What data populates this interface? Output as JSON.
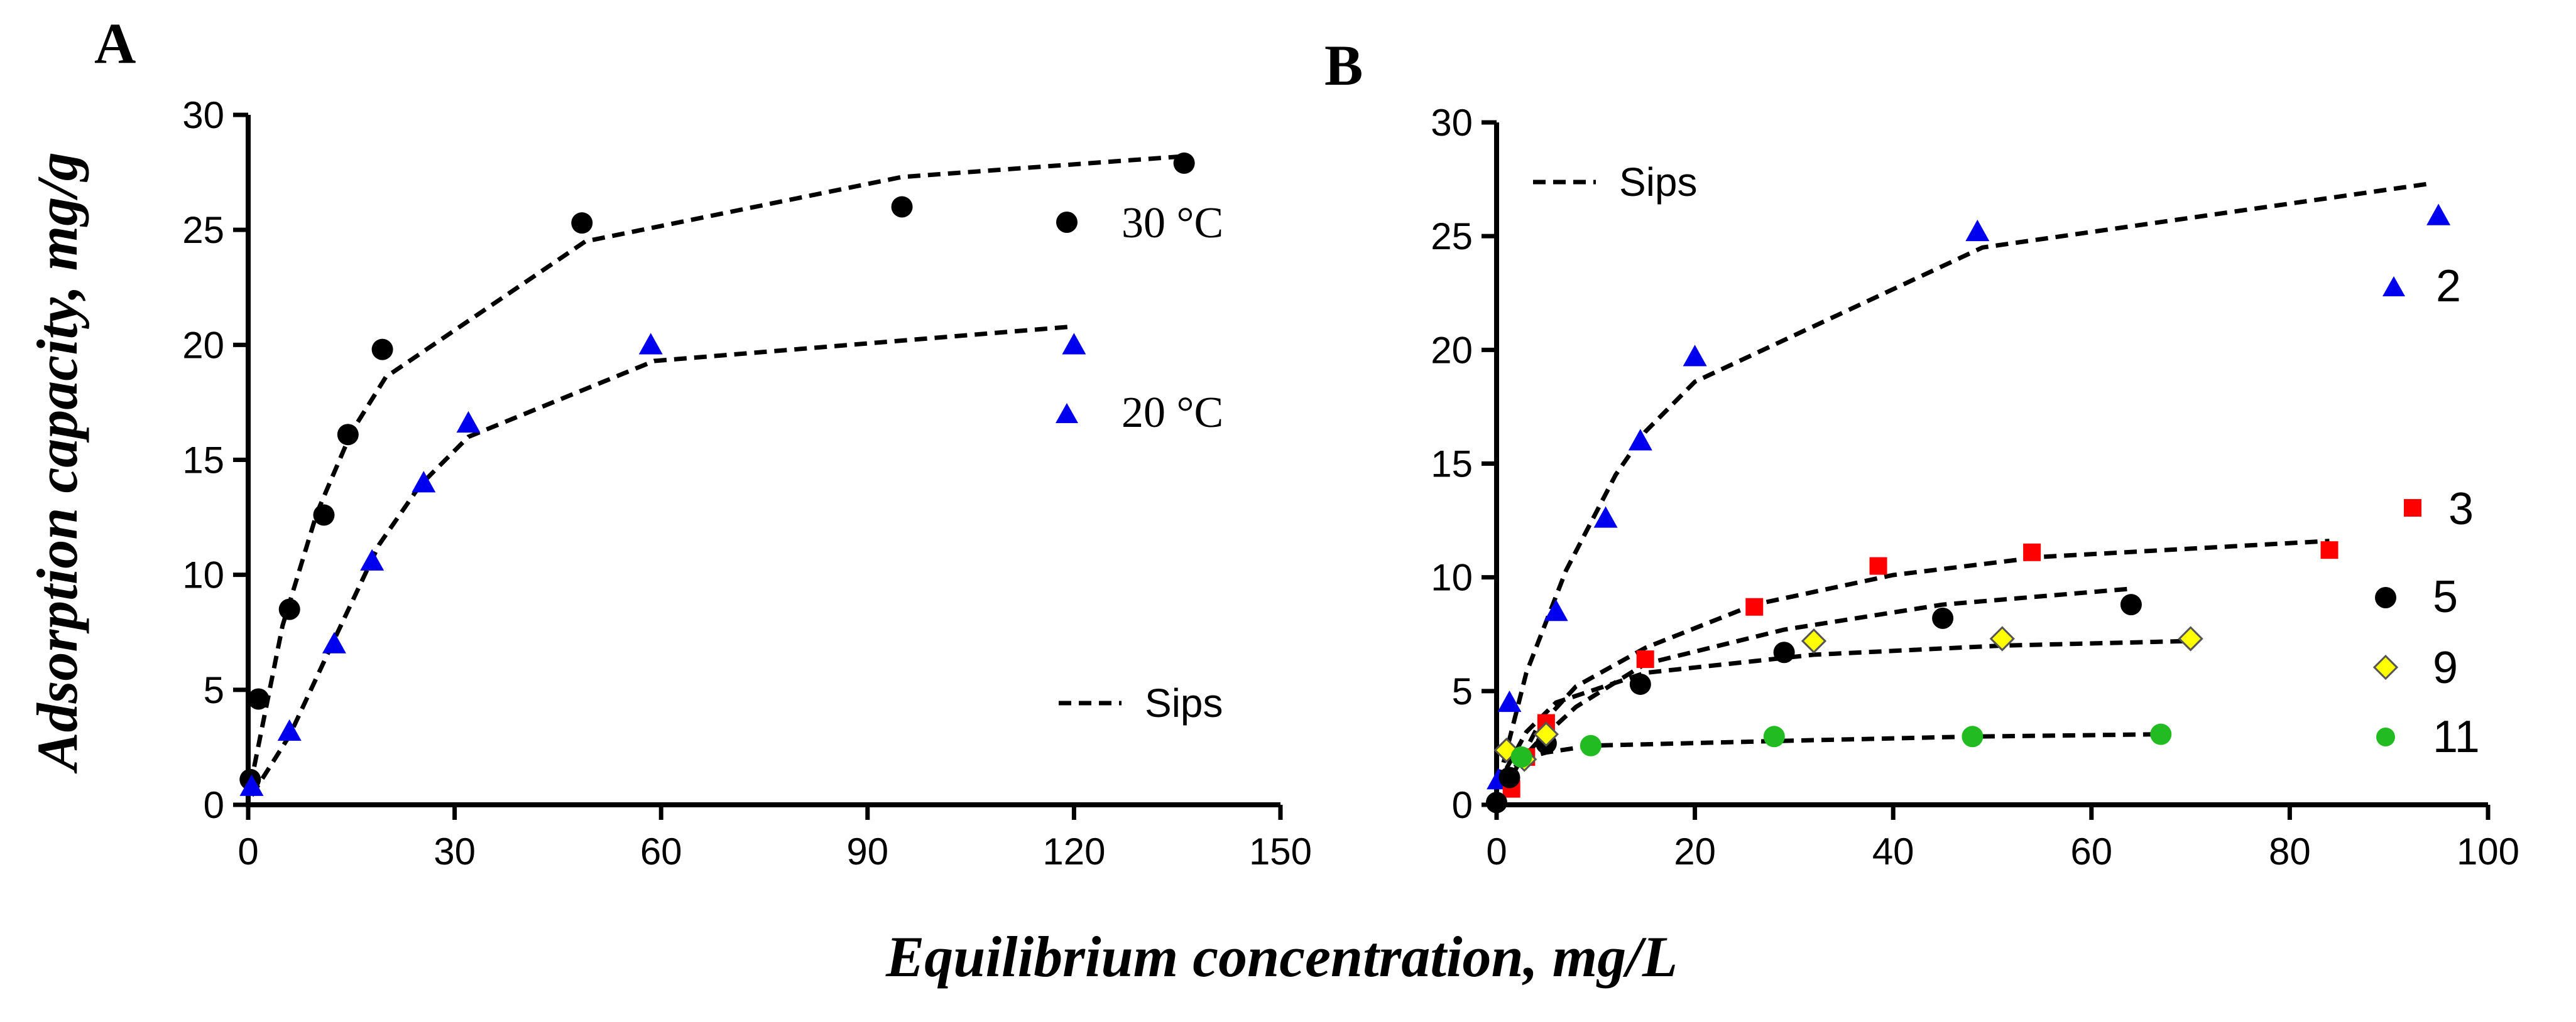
{
  "figure": {
    "ylabel": "Adsorption capacity, mg/g",
    "xlabel": "Equilibrium concentration, mg/L"
  },
  "chart_data": [
    {
      "panel": "A",
      "type": "scatter",
      "title": "",
      "xlim": [
        0,
        150
      ],
      "ylim": [
        0,
        30
      ],
      "xticks": [
        0,
        30,
        60,
        90,
        120,
        150
      ],
      "yticks": [
        0,
        5,
        10,
        15,
        20,
        25,
        30
      ],
      "legend": {
        "fit_label": "Sips"
      },
      "series": [
        {
          "name": "30 °C",
          "marker": "circle",
          "color": "#000000",
          "x": [
            0.3,
            1.5,
            6,
            11,
            14.5,
            19.5,
            48.5,
            95,
            136
          ],
          "y": [
            1.1,
            4.6,
            8.5,
            12.6,
            16.1,
            19.8,
            25.3,
            26.0,
            27.9
          ],
          "fit": {
            "x": [
              0.3,
              5,
              10,
              15,
              20,
              49,
              95,
              136
            ],
            "y": [
              0.8,
              7.8,
              12.7,
              16.2,
              18.6,
              24.5,
              27.3,
              28.2
            ]
          }
        },
        {
          "name": "20 °C",
          "marker": "triangle",
          "color": "#0000ee",
          "x": [
            0.5,
            6,
            12.5,
            18,
            25.5,
            32,
            58.5,
            120
          ],
          "y": [
            0.8,
            3.2,
            7.0,
            10.6,
            14.0,
            16.6,
            20.0,
            20.0
          ],
          "fit": {
            "x": [
              0.5,
              6,
              13,
              19,
              25,
              32,
              59,
              120
            ],
            "y": [
              0.4,
              3.0,
              7.5,
              11.3,
              13.9,
              16.0,
              19.3,
              20.8
            ]
          }
        }
      ]
    },
    {
      "panel": "B",
      "type": "scatter",
      "title": "",
      "xlim": [
        0,
        100
      ],
      "ylim": [
        0,
        30
      ],
      "xticks": [
        0,
        20,
        40,
        60,
        80,
        100
      ],
      "yticks": [
        0,
        5,
        10,
        15,
        20,
        25,
        30
      ],
      "legend": {
        "fit_label": "Sips"
      },
      "series": [
        {
          "name": "2",
          "marker": "triangle",
          "color": "#0000ee",
          "x": [
            0.2,
            1.3,
            6,
            11,
            14.5,
            20,
            48.5,
            95
          ],
          "y": [
            1.1,
            4.5,
            8.5,
            12.6,
            16.0,
            19.7,
            25.2,
            25.9
          ],
          "fit": {
            "x": [
              0.2,
              3,
              7,
              12,
              15,
              20,
              49,
              94
            ],
            "y": [
              1.0,
              5.8,
              10.3,
              14.5,
              16.4,
              18.6,
              24.5,
              27.3
            ]
          }
        },
        {
          "name": "3",
          "marker": "square",
          "color": "#ff0000",
          "x": [
            1.5,
            3,
            5,
            15,
            26,
            38.5,
            54,
            84
          ],
          "y": [
            0.7,
            2.1,
            3.6,
            6.4,
            8.7,
            10.5,
            11.1,
            11.2
          ],
          "fit": {
            "x": [
              1.5,
              4,
              8,
              15,
              26,
              40,
              55,
              84
            ],
            "y": [
              1.2,
              3.3,
              5.2,
              6.9,
              8.8,
              10.1,
              10.9,
              11.6
            ]
          }
        },
        {
          "name": "5",
          "marker": "circle",
          "color": "#000000",
          "x": [
            0,
            1.3,
            5,
            14.5,
            29,
            45,
            64
          ],
          "y": [
            0.1,
            1.2,
            2.7,
            5.3,
            6.7,
            8.2,
            8.8
          ],
          "fit": {
            "x": [
              0.5,
              4,
              8,
              15,
              29,
              45,
              64
            ],
            "y": [
              1.0,
              2.7,
              4.3,
              6.2,
              7.7,
              8.8,
              9.5
            ]
          }
        },
        {
          "name": "9",
          "marker": "diamond",
          "color": "#ffff00",
          "x": [
            1,
            2.8,
            5,
            32,
            51,
            70
          ],
          "y": [
            2.4,
            2.0,
            3.1,
            7.2,
            7.3,
            7.3
          ],
          "fit": {
            "x": [
              1,
              3,
              6,
              15,
              32,
              51,
              70
            ],
            "y": [
              1.6,
              3.2,
              4.5,
              5.8,
              6.6,
              7.0,
              7.2
            ]
          }
        },
        {
          "name": "11",
          "marker": "circle",
          "color": "#22bb22",
          "x": [
            2.5,
            9.5,
            28,
            48,
            67
          ],
          "y": [
            2.1,
            2.6,
            3.0,
            3.0,
            3.1
          ],
          "fit": {
            "x": [
              2.5,
              5,
              9.5,
              28,
              48,
              67
            ],
            "y": [
              2.0,
              2.3,
              2.6,
              2.8,
              3.0,
              3.1
            ]
          }
        }
      ]
    }
  ]
}
